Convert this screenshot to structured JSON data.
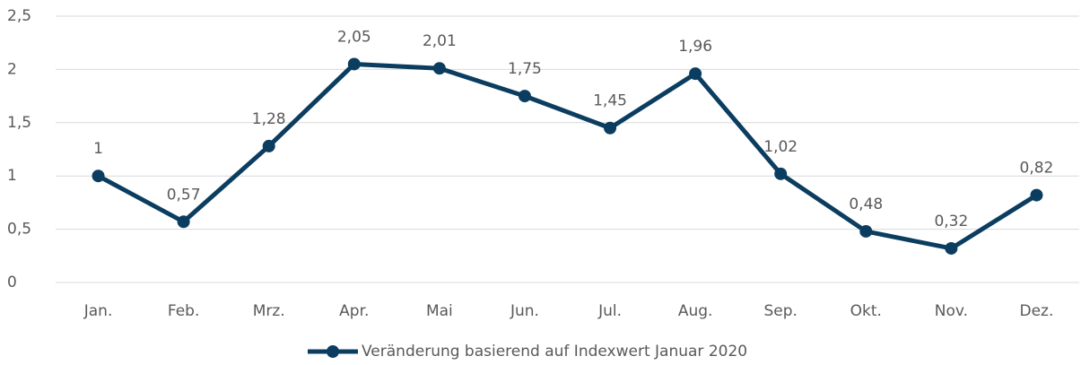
{
  "chart_data": {
    "type": "line",
    "categories": [
      "Jan.",
      "Feb.",
      "Mrz.",
      "Apr.",
      "Mai",
      "Jun.",
      "Jul.",
      "Aug.",
      "Sep.",
      "Okt.",
      "Nov.",
      "Dez."
    ],
    "series": [
      {
        "name": "Veränderung basierend auf Indexwert Januar 2020",
        "color": "#0b3d60",
        "values": [
          1,
          0.57,
          1.28,
          2.05,
          2.01,
          1.75,
          1.45,
          1.96,
          1.02,
          0.48,
          0.32,
          0.82
        ],
        "value_labels": [
          "1",
          "0,57",
          "1,28",
          "2,05",
          "2,01",
          "1,75",
          "1,45",
          "1,96",
          "1,02",
          "0,48",
          "0,32",
          "0,82"
        ]
      }
    ],
    "ylim": [
      0,
      2.5
    ],
    "yticks": [
      0,
      {
        "value": 0.5,
        "label": "0,5"
      },
      1,
      {
        "value": 1.5,
        "label": "1,5"
      },
      2,
      {
        "value": 2.5,
        "label": "2,5"
      }
    ],
    "grid": true,
    "legend": "bottom"
  }
}
